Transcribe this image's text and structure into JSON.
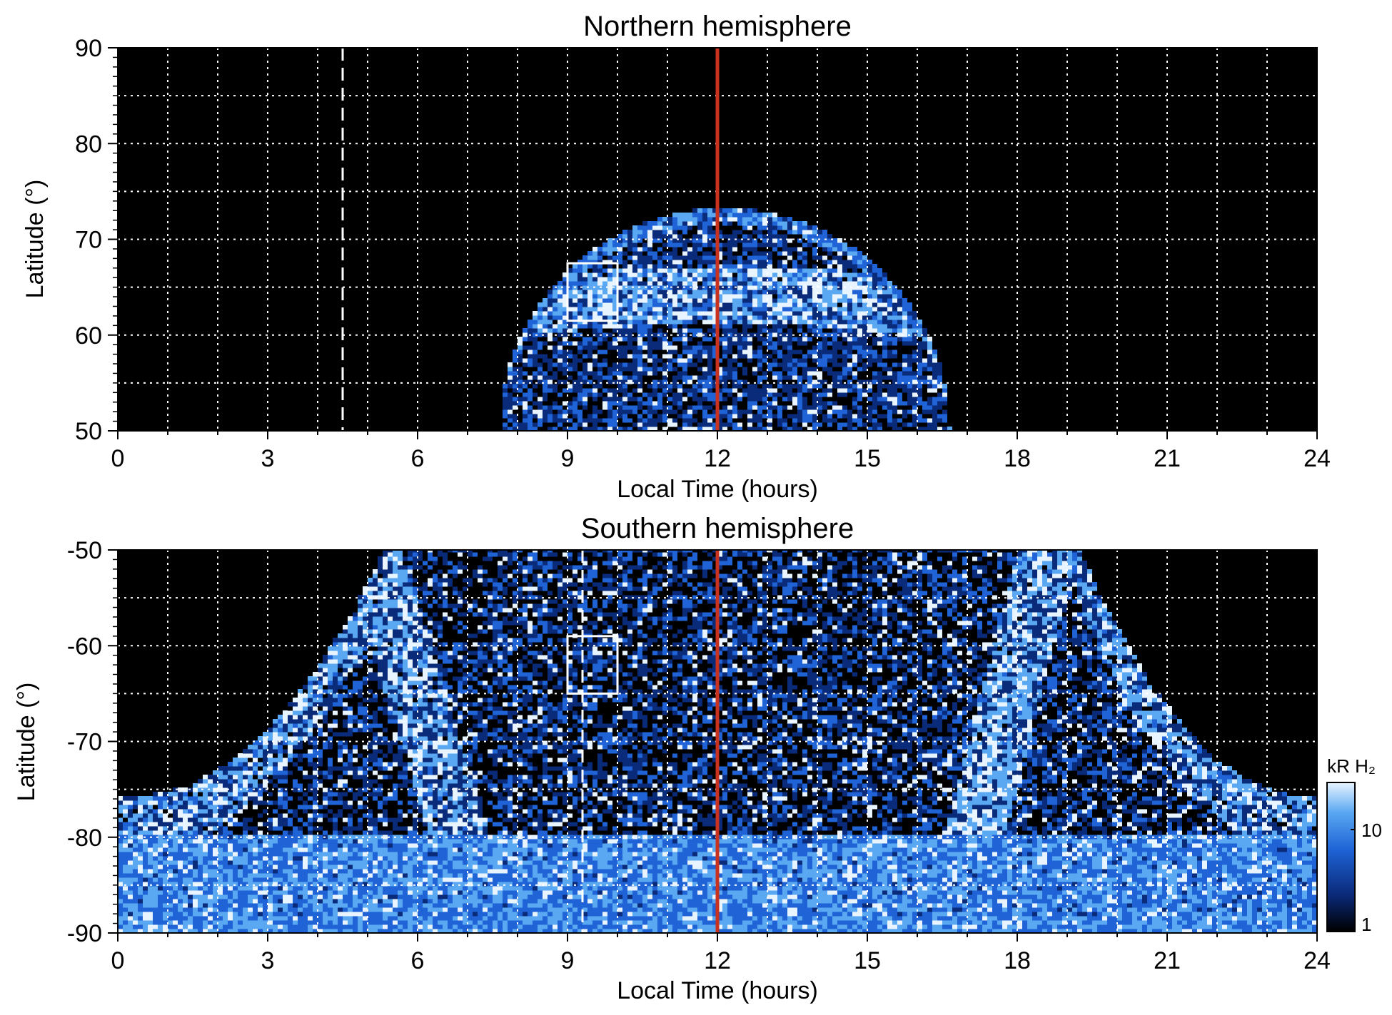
{
  "chart_data": [
    {
      "type": "heatmap",
      "title": "Northern hemisphere",
      "xlabel": "Local Time (hours)",
      "ylabel": "Latitude (°)",
      "xlim": [
        0,
        24
      ],
      "ylim": [
        50,
        90
      ],
      "xticks": [
        "0",
        "3",
        "6",
        "9",
        "12",
        "15",
        "18",
        "21",
        "24"
      ],
      "yticks": [
        "50",
        "60",
        "70",
        "80",
        "90"
      ],
      "grid": true,
      "noon_line_lt": 12,
      "dashed_line_lt": 4.5,
      "box": {
        "lt": [
          9.0,
          10.0
        ],
        "lat": [
          61.5,
          67.5
        ]
      },
      "emission_region": {
        "lt_range": [
          7.6,
          16.6
        ],
        "lat_min": 50,
        "lat_peak": 73,
        "main_oval_lat": 65
      }
    },
    {
      "type": "heatmap",
      "title": "Southern hemisphere",
      "xlabel": "Local Time (hours)",
      "ylabel": "Latitude (°)",
      "xlim": [
        0,
        24
      ],
      "ylim": [
        -90,
        -50
      ],
      "xticks": [
        "0",
        "3",
        "6",
        "9",
        "12",
        "15",
        "18",
        "21",
        "24"
      ],
      "yticks": [
        "-50",
        "-60",
        "-70",
        "-80",
        "-90"
      ],
      "grid": true,
      "noon_line_lt": 12,
      "dashed_line_lt": 9.3,
      "box": {
        "lt": [
          9.0,
          10.0
        ],
        "lat": [
          -65.0,
          -59.0
        ]
      },
      "emission_region": {
        "lt_range": [
          0,
          24
        ],
        "lat_max": -50,
        "main_oval_dawn_lt": 5.0,
        "main_oval_dusk_lt": 18.6
      }
    }
  ],
  "colorbar": {
    "label": "kR H₂",
    "scale": "log",
    "range": [
      1,
      20
    ],
    "ticks": [
      "10",
      "1"
    ],
    "colors": [
      "#000000",
      "#0a2a7a",
      "#1f63d6",
      "#5aa8f2",
      "#e8f4ff"
    ]
  },
  "colors": {
    "noon_line": "#c8321e",
    "grid": "#ffffff",
    "background": "#000000"
  }
}
